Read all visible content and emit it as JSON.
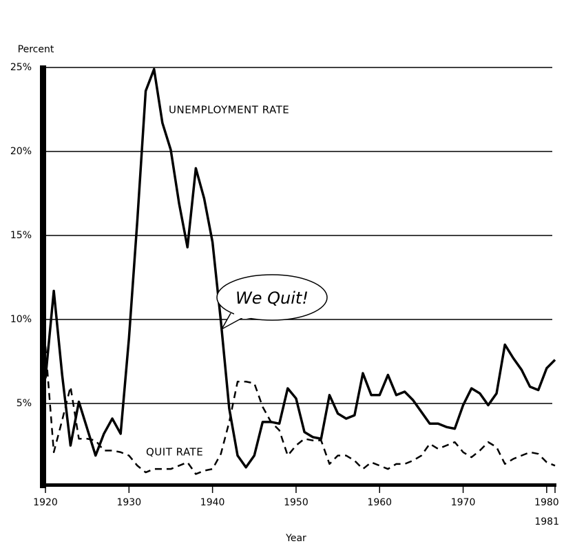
{
  "chart_data": {
    "type": "line",
    "y_axis_label": "Percent",
    "x_axis_label": "Year",
    "annotations": [
      "UNEMPLOYMENT RATE",
      "QUIT RATE",
      "We Quit!"
    ],
    "x": [
      1920,
      1921,
      1922,
      1923,
      1924,
      1925,
      1926,
      1927,
      1928,
      1929,
      1930,
      1931,
      1932,
      1933,
      1934,
      1935,
      1936,
      1937,
      1938,
      1939,
      1940,
      1941,
      1942,
      1943,
      1944,
      1945,
      1946,
      1947,
      1948,
      1949,
      1950,
      1951,
      1952,
      1953,
      1954,
      1955,
      1956,
      1957,
      1958,
      1959,
      1960,
      1961,
      1962,
      1963,
      1964,
      1965,
      1966,
      1967,
      1968,
      1969,
      1970,
      1971,
      1972,
      1973,
      1974,
      1975,
      1976,
      1977,
      1978,
      1979,
      1980,
      1981
    ],
    "series": [
      {
        "name": "UNEMPLOYMENT RATE",
        "color": "#000000",
        "style": "solid",
        "values": [
          6.5,
          11.7,
          6.7,
          2.5,
          5.1,
          3.5,
          1.9,
          3.2,
          4.1,
          3.2,
          8.9,
          15.9,
          23.6,
          24.9,
          21.7,
          20.1,
          16.9,
          14.3,
          19.0,
          17.2,
          14.6,
          9.9,
          4.7,
          1.9,
          1.2,
          1.9,
          3.9,
          3.9,
          3.8,
          5.9,
          5.3,
          3.3,
          3.0,
          2.9,
          5.5,
          4.4,
          4.1,
          4.3,
          6.8,
          5.5,
          5.5,
          6.7,
          5.5,
          5.7,
          5.2,
          4.5,
          3.8,
          3.8,
          3.6,
          3.5,
          4.9,
          5.9,
          5.6,
          4.9,
          5.6,
          8.5,
          7.7,
          7.0,
          6.0,
          5.8,
          7.1,
          7.6
        ]
      },
      {
        "name": "QUIT RATE",
        "color": "#000000",
        "style": "dashed",
        "values": [
          8.4,
          2.1,
          4.0,
          6.0,
          2.9,
          2.9,
          2.8,
          2.2,
          2.2,
          2.1,
          1.9,
          1.3,
          0.9,
          1.1,
          1.1,
          1.1,
          1.3,
          1.5,
          0.8,
          1.0,
          1.1,
          2.0,
          3.9,
          6.3,
          6.3,
          6.2,
          4.8,
          3.9,
          3.4,
          1.9,
          2.5,
          2.9,
          2.8,
          2.8,
          1.4,
          1.9,
          1.9,
          1.6,
          1.1,
          1.5,
          1.3,
          1.1,
          1.4,
          1.4,
          1.6,
          1.9,
          2.6,
          2.3,
          2.5,
          2.7,
          2.1,
          1.8,
          2.2,
          2.7,
          2.4,
          1.4,
          1.7,
          1.9,
          2.1,
          2.0,
          1.5,
          1.3
        ]
      }
    ],
    "xlim": [
      1920,
      1981
    ],
    "xticks": [
      1920,
      1930,
      1940,
      1950,
      1960,
      1970,
      1980,
      1981
    ],
    "ylim": [
      0,
      25
    ],
    "yticks": [
      {
        "value": 5,
        "label": "5%"
      },
      {
        "value": 10,
        "label": "10%"
      },
      {
        "value": 15,
        "label": "15%"
      },
      {
        "value": 20,
        "label": "20%"
      },
      {
        "value": 25,
        "label": "25%"
      }
    ],
    "grid": true
  }
}
